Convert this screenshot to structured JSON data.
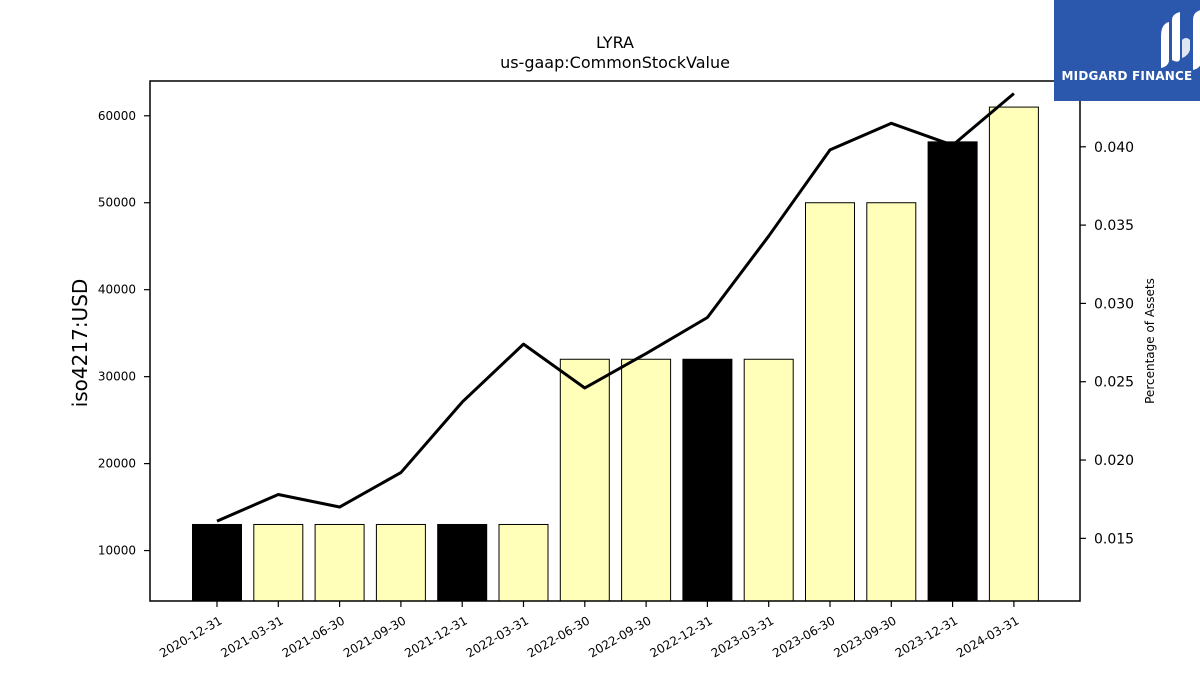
{
  "brand": {
    "name": "MIDGARD FINANCE",
    "color": "#2b58ad"
  },
  "chart_data": {
    "type": "bar",
    "title": "LYRA",
    "subtitle": "us-gaap:CommonStockValue",
    "ylabel": "iso4217:USD",
    "y2label": "Percentage of Assets",
    "categories": [
      "2020-12-31",
      "2021-03-31",
      "2021-06-30",
      "2021-09-30",
      "2021-12-31",
      "2022-03-31",
      "2022-06-30",
      "2022-09-30",
      "2022-12-31",
      "2023-03-31",
      "2023-06-30",
      "2023-09-30",
      "2023-12-31",
      "2024-03-31"
    ],
    "values": [
      13000,
      13000,
      13000,
      13000,
      13000,
      13000,
      32000,
      32000,
      32000,
      32000,
      50000,
      50000,
      57000,
      61000
    ],
    "bar_colors": [
      "#000000",
      "#ffffb9",
      "#ffffb9",
      "#ffffb9",
      "#000000",
      "#ffffb9",
      "#ffffb9",
      "#ffffb9",
      "#000000",
      "#ffffb9",
      "#ffffb9",
      "#ffffb9",
      "#000000",
      "#ffffb9"
    ],
    "line_values": [
      0.0161,
      0.0178,
      0.017,
      0.0192,
      0.0237,
      0.0274,
      0.0246,
      0.0268,
      0.0291,
      0.0343,
      0.0398,
      0.0415,
      0.0401,
      0.0434
    ],
    "ylim": [
      4200,
      64000
    ],
    "y2lim": [
      0.011,
      0.0442
    ],
    "yticks": [
      10000,
      20000,
      30000,
      40000,
      50000,
      60000
    ],
    "y2ticks": [
      "0.015",
      "0.020",
      "0.025",
      "0.030",
      "0.035",
      "0.040"
    ],
    "grid": false,
    "line_color": "#000000"
  }
}
